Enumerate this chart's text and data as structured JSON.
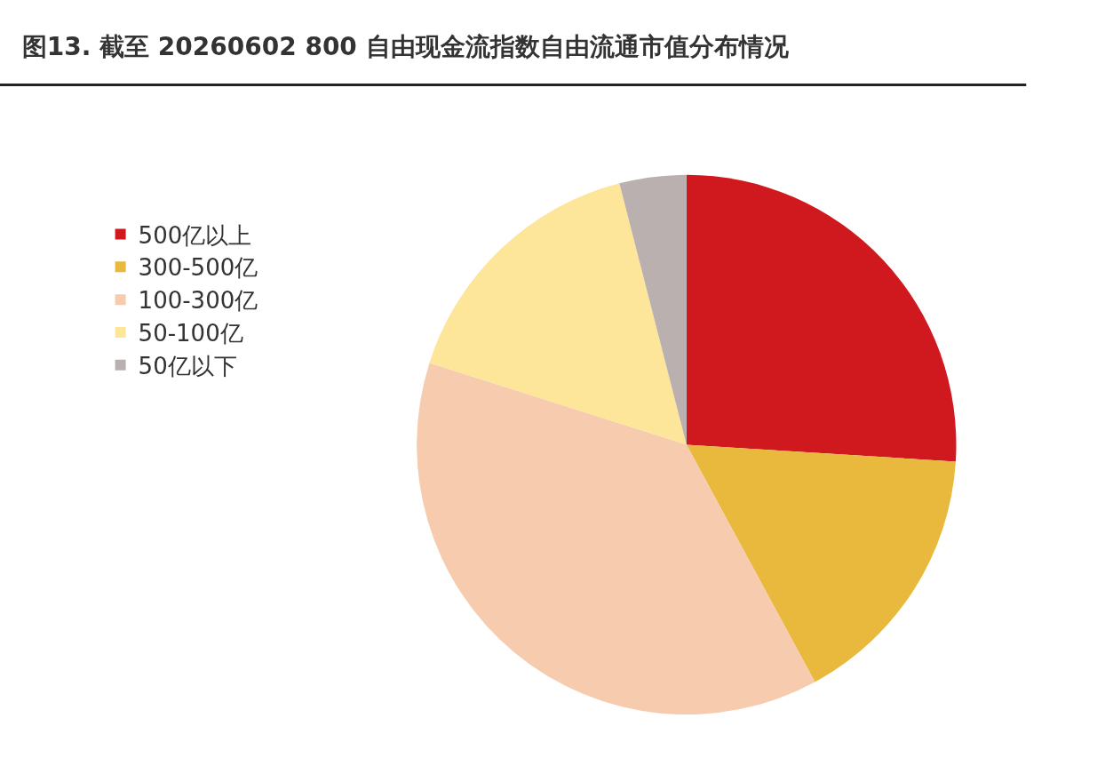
{
  "chart_data": {
    "type": "pie",
    "title": "图13. 截至 20260602 800 自由现金流指数自由流通市值分布情况",
    "categories": [
      "500亿以上",
      "300-500亿",
      "100-300亿",
      "50-100亿",
      "50亿以下"
    ],
    "values": [
      26.0,
      16.1,
      37.8,
      16.1,
      4.0
    ],
    "colors": [
      "#d0181f",
      "#e8b93c",
      "#f6cbae",
      "#fde59a",
      "#bbb0b0"
    ],
    "legend": "left"
  }
}
